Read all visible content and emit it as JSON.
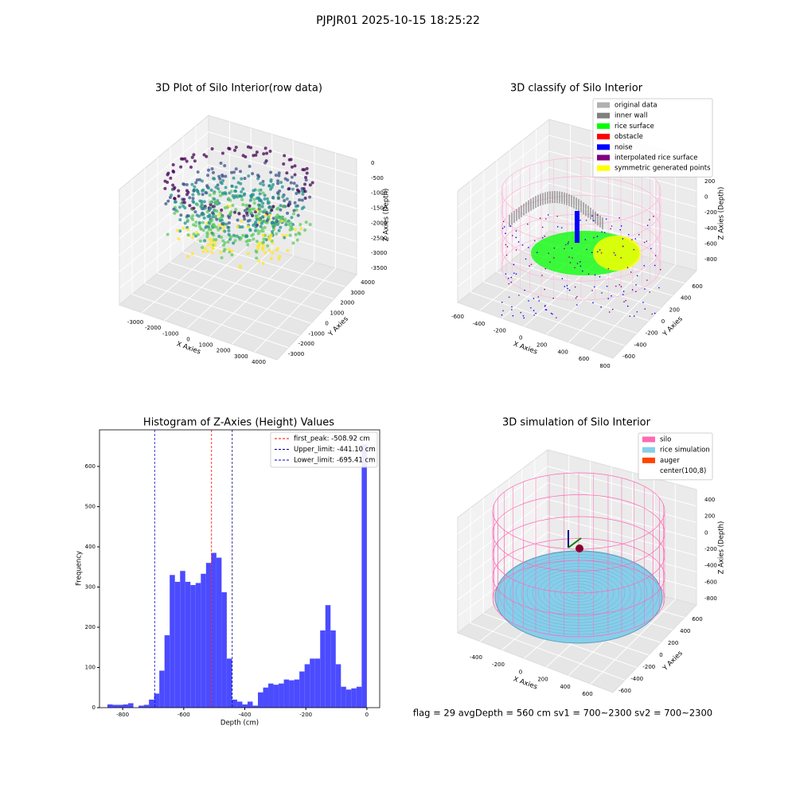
{
  "title": "PJPJR01 2025-10-15 18:25:22",
  "footer": "flag = 29  avgDepth = 560 cm  sv1 = 700~2300  sv2 = 700~2300",
  "chart_data": [
    {
      "type": "scatter3d",
      "title": "3D Plot of Silo Interior(row data)",
      "xlabel": "X Axies",
      "ylabel": "Y Axies",
      "zlabel": "Z Axies (Depth)",
      "xticks": [
        -3000,
        -2000,
        -1000,
        0,
        1000,
        2000,
        3000,
        4000
      ],
      "yticks": [
        4000,
        3000,
        2000,
        1000,
        0,
        -1000,
        -2000,
        -3000
      ],
      "zticks": [
        0,
        -500,
        -1000,
        -1500,
        -2000,
        -2500,
        -3000,
        -3500
      ]
    },
    {
      "type": "classify3d",
      "title": "3D classify of Silo Interior",
      "xlabel": "X Axies",
      "ylabel": "Y Axies",
      "zlabel": "Z Axies (Depth)",
      "xticks": [
        -600,
        -400,
        -200,
        0,
        200,
        400,
        600,
        800
      ],
      "yticks": [
        600,
        400,
        200,
        0,
        -200,
        -400,
        -600
      ],
      "zticks": [
        200,
        0,
        -200,
        -400,
        -600,
        -800
      ],
      "legend": [
        {
          "label": "original data",
          "color": "#b0b0b0"
        },
        {
          "label": "inner wall",
          "color": "#808080"
        },
        {
          "label": "rice surface",
          "color": "#00ff00"
        },
        {
          "label": "obstacle",
          "color": "#ff0000"
        },
        {
          "label": "noise",
          "color": "#0000ff"
        },
        {
          "label": "interpolated rice surface",
          "color": "#800080"
        },
        {
          "label": "symmetric generated points",
          "color": "#ffff00"
        }
      ]
    },
    {
      "type": "histogram",
      "title": "Histogram of Z-Axies (Height) Values",
      "xlabel": "Depth (cm)",
      "ylabel": "Frequency",
      "color": "#4b4bff",
      "bins": [
        -850,
        -833,
        -816,
        -799,
        -782,
        -765,
        -748,
        -731,
        -714,
        -697,
        -680,
        -663,
        -646,
        -629,
        -612,
        -595,
        -578,
        -561,
        -544,
        -527,
        -510,
        -493,
        -476,
        -459,
        -442,
        -425,
        -408,
        -391,
        -374,
        -357,
        -340,
        -323,
        -306,
        -289,
        -272,
        -255,
        -238,
        -221,
        -204,
        -187,
        -170,
        -153,
        -136,
        -119,
        -102,
        -85,
        -68,
        -51,
        -34,
        -17,
        0
      ],
      "counts": [
        8,
        7,
        7,
        8,
        11,
        0,
        5,
        7,
        20,
        35,
        92,
        180,
        330,
        313,
        340,
        313,
        305,
        310,
        333,
        360,
        385,
        373,
        287,
        122,
        20,
        15,
        8,
        15,
        5,
        38,
        50,
        60,
        57,
        60,
        70,
        68,
        70,
        90,
        108,
        122,
        122,
        192,
        255,
        192,
        108,
        52,
        45,
        48,
        52,
        655
      ],
      "lines": [
        {
          "value": -508.92,
          "color": "#ff0000",
          "label": "first_peak: -508.92 cm"
        },
        {
          "value": -441.1,
          "color": "#00008b",
          "label": "Upper_limit: -441.10 cm"
        },
        {
          "value": -695.41,
          "color": "#0000cd",
          "label": "Lower_limit: -695.41 cm"
        }
      ],
      "xlim": [
        -876,
        42
      ],
      "ylim": [
        0,
        691
      ],
      "xticks": [
        -800,
        -600,
        -400,
        -200,
        0
      ],
      "yticks": [
        0,
        100,
        200,
        300,
        400,
        500,
        600
      ]
    },
    {
      "type": "surface3d",
      "title": "3D simulation of Silo Interior",
      "xlabel": "X Axies",
      "ylabel": "Y Axies",
      "zlabel": "Z Axies (Depth)",
      "xticks": [
        -400,
        -200,
        0,
        200,
        400,
        600
      ],
      "yticks": [
        600,
        400,
        200,
        0,
        -200,
        -400,
        -600
      ],
      "zticks": [
        400,
        200,
        0,
        -200,
        -400,
        -600,
        -800
      ],
      "legend": [
        {
          "label": "silo",
          "color": "#ff69b4"
        },
        {
          "label": "rice simulation",
          "color": "#87ceeb"
        },
        {
          "label": "auger",
          "color": "#ff4500"
        },
        {
          "label": "center(100,8)",
          "color": "#ffffff"
        }
      ]
    }
  ]
}
